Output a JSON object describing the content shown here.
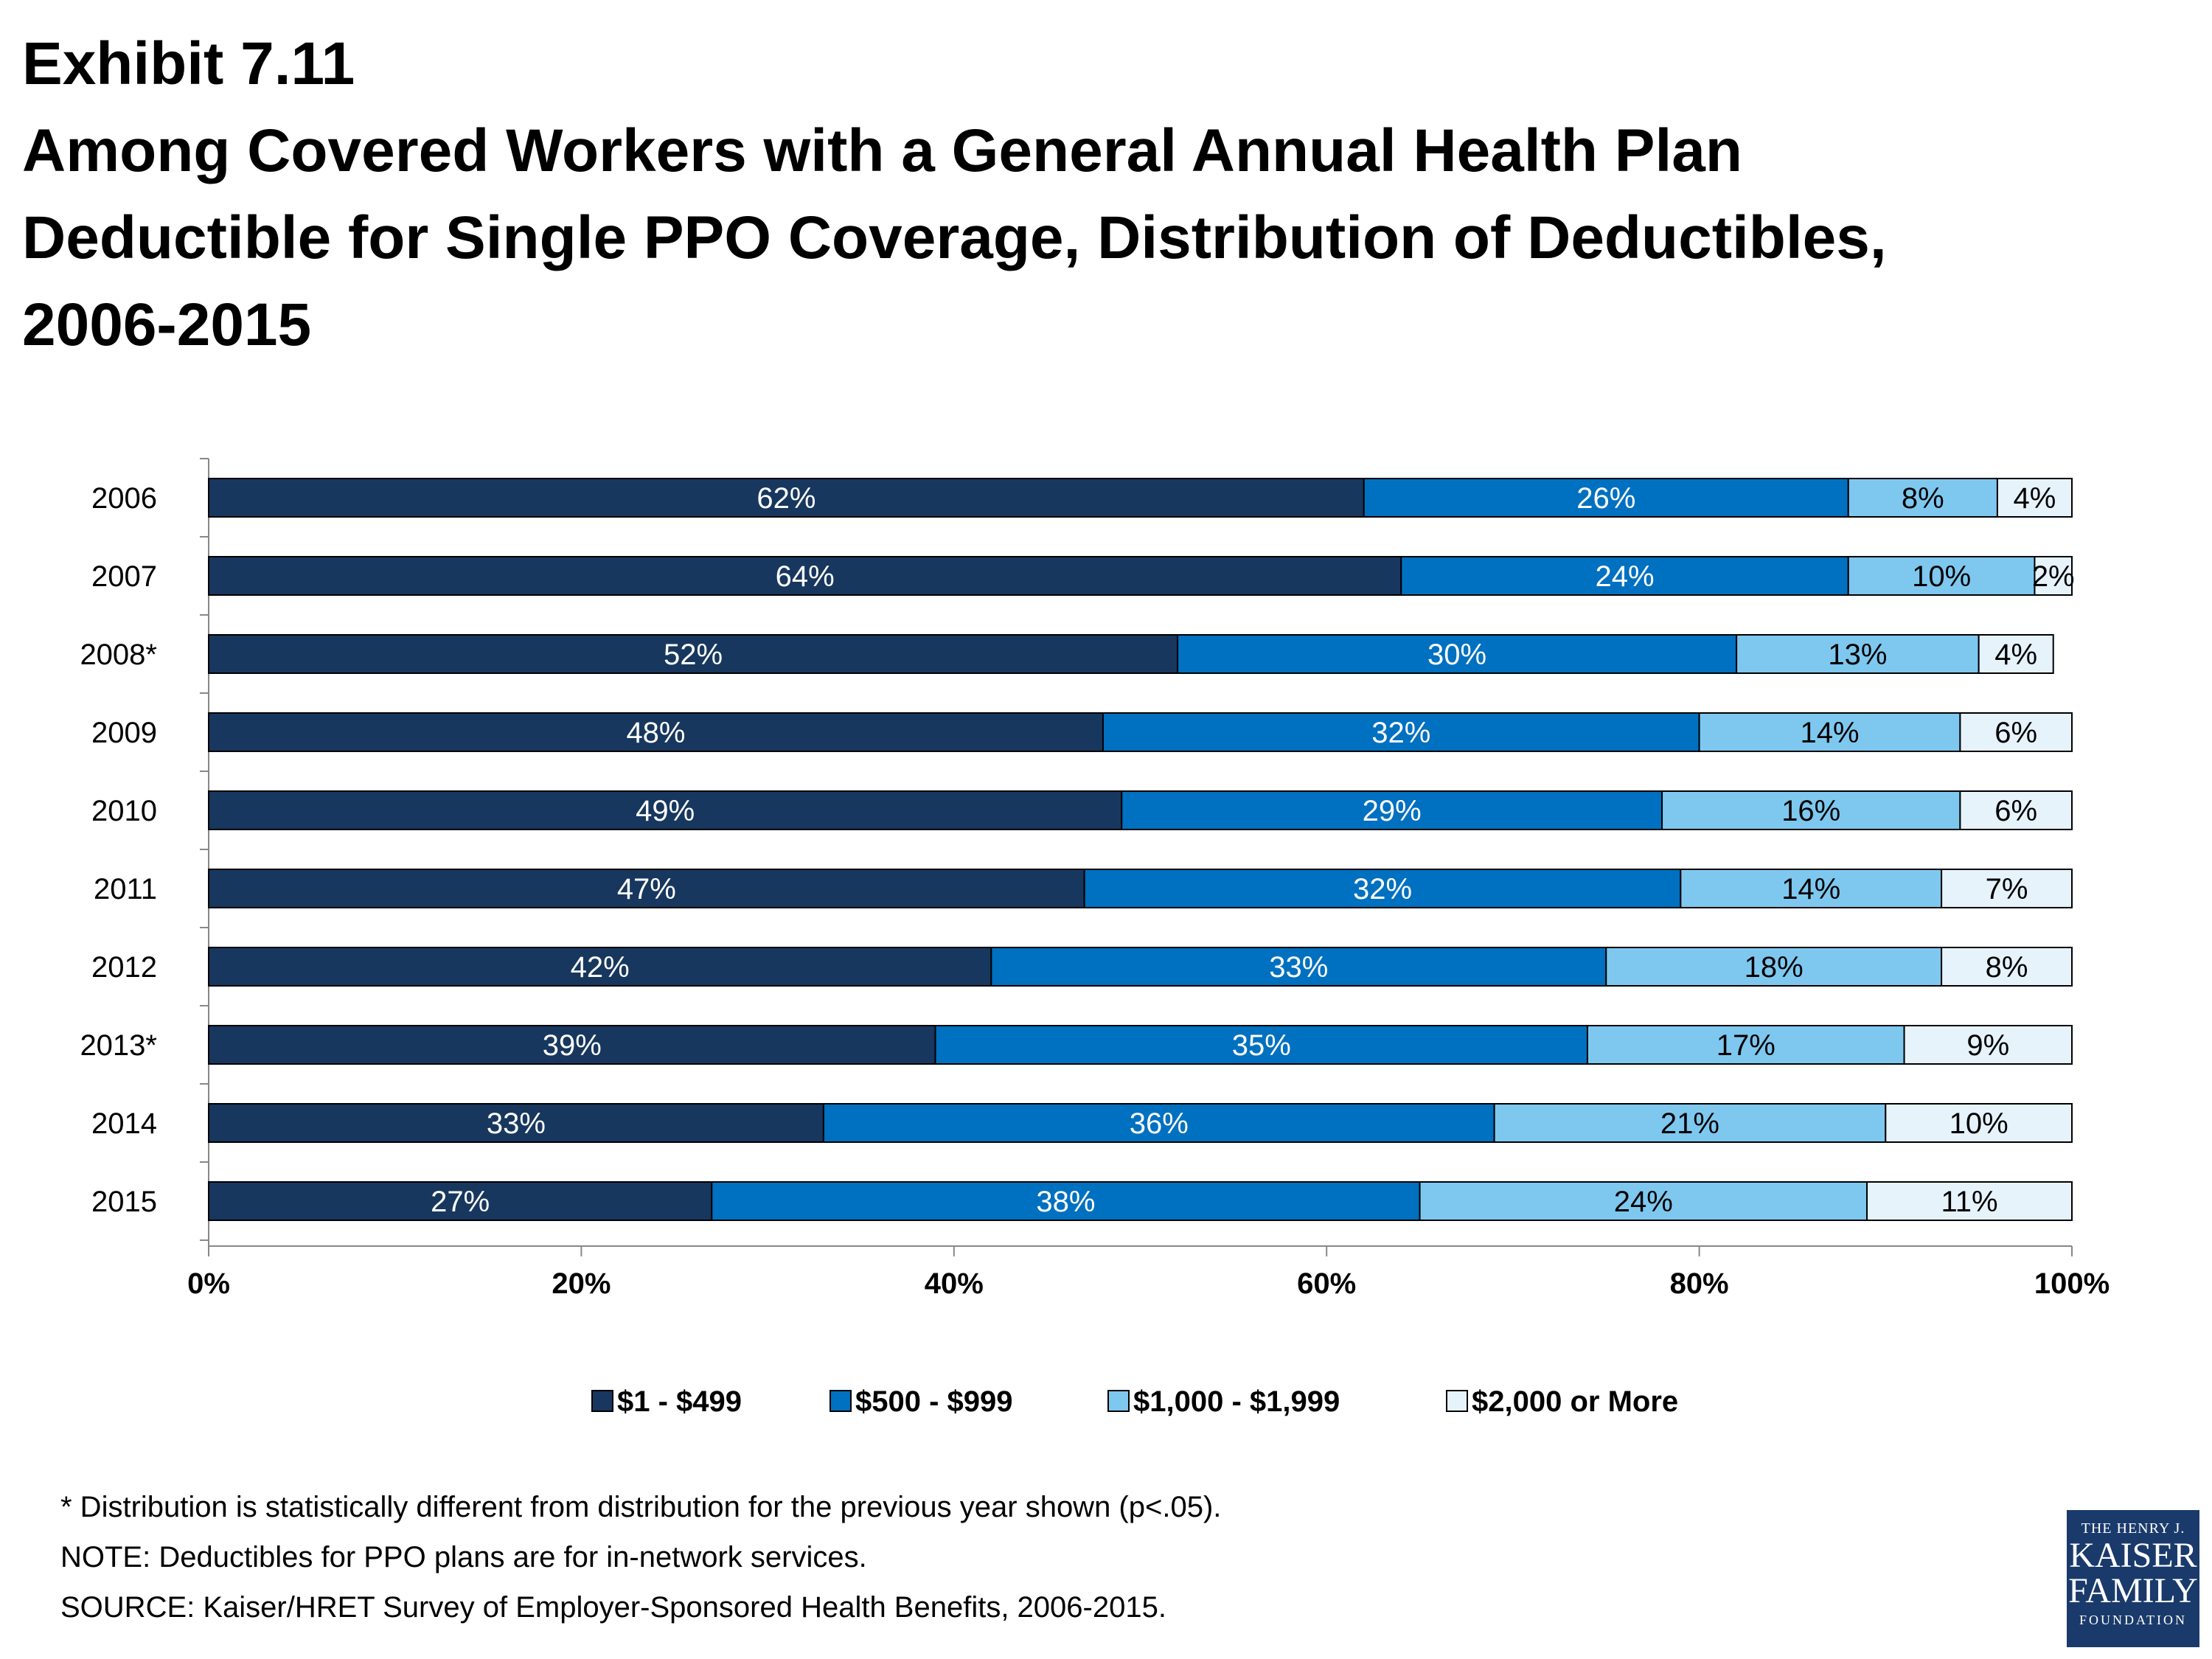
{
  "chart_data": {
    "type": "bar",
    "orientation": "horizontal",
    "stacked": true,
    "title": "Exhibit 7.11",
    "title_lines": [
      "Exhibit 7.11",
      "Among Covered Workers with a General Annual Health Plan",
      "Deductible for Single PPO Coverage, Distribution of Deductibles,",
      "2006-2015"
    ],
    "categories": [
      "2006",
      "2007",
      "2008*",
      "2009",
      "2010",
      "2011",
      "2012",
      "2013*",
      "2014",
      "2015"
    ],
    "series": [
      {
        "name": "$1 - $499",
        "color": "#17375e",
        "values": [
          62,
          64,
          52,
          48,
          49,
          47,
          42,
          39,
          33,
          27
        ],
        "labels": [
          "62%",
          "64%",
          "52%",
          "48%",
          "49%",
          "47%",
          "42%",
          "39%",
          "33%",
          "27%"
        ]
      },
      {
        "name": "$500 - $999",
        "color": "#0070c0",
        "values": [
          26,
          24,
          30,
          32,
          29,
          32,
          33,
          35,
          36,
          38
        ],
        "labels": [
          "26%",
          "24%",
          "30%",
          "32%",
          "29%",
          "32%",
          "33%",
          "35%",
          "36%",
          "38%"
        ]
      },
      {
        "name": "$1,000 - $1,999",
        "color": "#7ec8f0",
        "values": [
          8,
          10,
          13,
          14,
          16,
          14,
          18,
          17,
          21,
          24
        ],
        "labels": [
          "8%",
          "10%",
          "13%",
          "14%",
          "16%",
          "14%",
          "18%",
          "17%",
          "21%",
          "24%"
        ]
      },
      {
        "name": "$2,000 or More",
        "color": "#e6f3fb",
        "values": [
          4,
          2,
          4,
          6,
          6,
          7,
          8,
          9,
          10,
          11
        ],
        "labels": [
          "4%",
          "2%",
          "4%",
          "6%",
          "6%",
          "7%",
          "8%",
          "9%",
          "10%",
          "11%"
        ]
      }
    ],
    "xlim": [
      0,
      100
    ],
    "xticks": [
      "0%",
      "20%",
      "40%",
      "60%",
      "80%",
      "100%"
    ],
    "xlabel": "",
    "ylabel": "",
    "grid": false,
    "legend_position": "bottom"
  },
  "notes": [
    "* Distribution is statistically different from distribution for the previous year shown (p<.05).",
    "NOTE: Deductibles for PPO plans are for in-network services.",
    "SOURCE: Kaiser/HRET Survey of Employer-Sponsored Health Benefits, 2006-2015."
  ],
  "logo": {
    "line1": "THE HENRY J.",
    "line2": "KAISER",
    "line3": "FAMILY",
    "line4": "FOUNDATION",
    "color": "#1a3a6b"
  }
}
